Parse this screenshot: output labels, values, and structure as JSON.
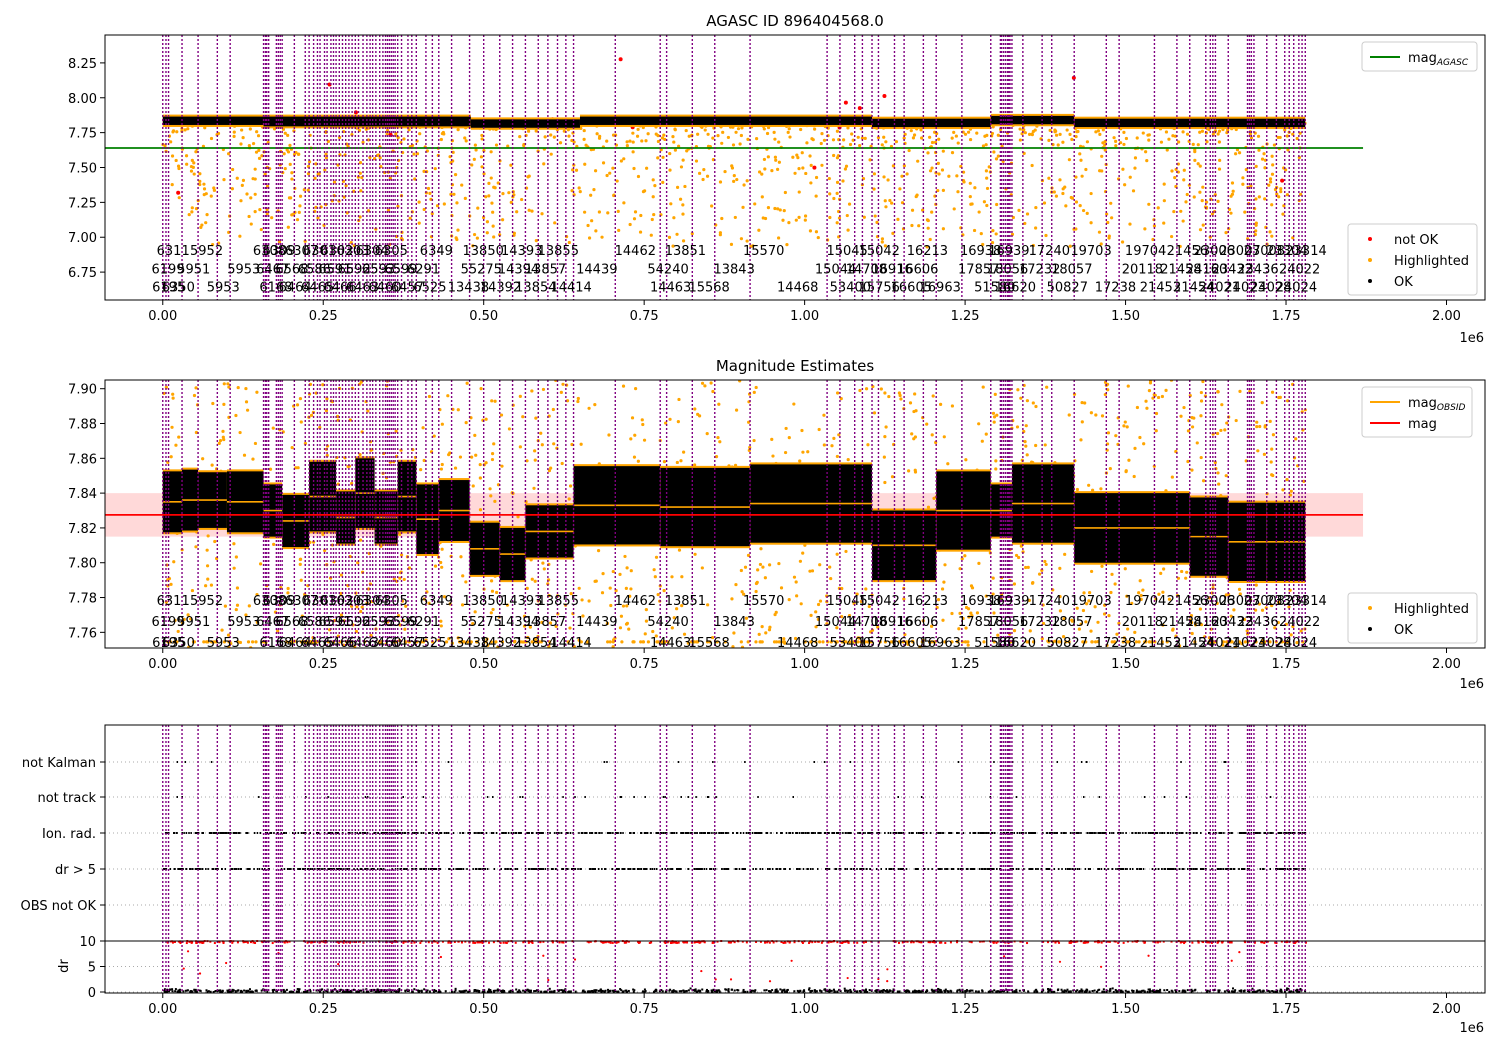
{
  "figure": {
    "width": 1500,
    "height": 1050
  },
  "colors": {
    "obs_line": "#800080",
    "ok": "#000000",
    "highlighted": "#ffa500",
    "not_ok": "#ff0000",
    "mag_agasc": "#008000",
    "mag": "#ff0000",
    "mag_band": "#ffc0c0",
    "mag_obsid": "#ffa500"
  },
  "obs_boundaries_x": [
    0,
    5000,
    9000,
    30000,
    55000,
    85000,
    105000,
    157000,
    160000,
    162000,
    165000,
    177000,
    180000,
    183000,
    186000,
    205000,
    222000,
    228000,
    235000,
    241000,
    245000,
    252000,
    256000,
    262000,
    266000,
    270000,
    275000,
    280000,
    285000,
    290000,
    295000,
    300000,
    305000,
    312000,
    318000,
    323000,
    327000,
    332000,
    338000,
    343000,
    347000,
    350000,
    353000,
    356000,
    359000,
    362000,
    366000,
    372000,
    382000,
    388000,
    395000,
    410000,
    420000,
    430000,
    450000,
    478000,
    500000,
    525000,
    545000,
    565000,
    585000,
    600000,
    615000,
    628000,
    640000,
    705000,
    775000,
    785000,
    825000,
    860000,
    915000,
    1035000,
    1055000,
    1078000,
    1090000,
    1105000,
    1115000,
    1140000,
    1155000,
    1185000,
    1205000,
    1245000,
    1290000,
    1305000,
    1307000,
    1310000,
    1313000,
    1316000,
    1318000,
    1320000,
    1323000,
    1340000,
    1370000,
    1385000,
    1420000,
    1470000,
    1490000,
    1545000,
    1580000,
    1600000,
    1625000,
    1632000,
    1636000,
    1640000,
    1660000,
    1690000,
    1693000,
    1696000,
    1700000,
    1720000,
    1735000,
    1748000,
    1755000,
    1762000,
    1770000,
    1775000,
    1780000
  ],
  "panels": [
    {
      "title": "AGASC ID 896404568.0",
      "xlim": [
        -90000,
        2060000
      ],
      "ylim": [
        6.55,
        8.45
      ],
      "yticks": [
        6.75,
        7.0,
        7.25,
        7.5,
        7.75,
        8.0,
        8.25
      ],
      "ytick_labels": [
        "6.75",
        "7.00",
        "7.25",
        "7.50",
        "7.75",
        "8.00",
        "8.25"
      ],
      "xticks": [
        0,
        250000,
        500000,
        750000,
        1000000,
        1250000,
        1500000,
        1750000,
        2000000
      ],
      "xtick_labels": [
        "0.00",
        "0.25",
        "0.50",
        "0.75",
        "1.00",
        "1.25",
        "1.50",
        "1.75",
        "2.00"
      ],
      "x_offset_label": "1e6",
      "obsid_rows_y": [
        6.9,
        6.77,
        6.64
      ],
      "hlines": [
        {
          "series": "mag_AGASC",
          "y": 7.64,
          "x0": -90000,
          "x1": 1870000
        }
      ],
      "band": null,
      "segments": [
        {
          "x0": 0,
          "x1": 157000,
          "y": 7.835,
          "h": 0.06
        },
        {
          "x0": 157000,
          "x1": 480000,
          "y": 7.83,
          "h": 0.07
        },
        {
          "x0": 480000,
          "x1": 650000,
          "y": 7.815,
          "h": 0.06
        },
        {
          "x0": 650000,
          "x1": 1105000,
          "y": 7.835,
          "h": 0.06
        },
        {
          "x0": 1105000,
          "x1": 1290000,
          "y": 7.82,
          "h": 0.06
        },
        {
          "x0": 1290000,
          "x1": 1420000,
          "y": 7.84,
          "h": 0.06
        },
        {
          "x0": 1420000,
          "x1": 1780000,
          "y": 7.82,
          "h": 0.06
        }
      ],
      "scatter_sets": [
        {
          "color_key": "highlighted",
          "n": 1400,
          "mode": "below",
          "ymin": 6.55,
          "ymax": 7.9
        },
        {
          "color_key": "not_ok",
          "n": 14,
          "mode": "sparse",
          "ymin": 7.2,
          "ymax": 8.4
        }
      ],
      "legend": [
        {
          "label": "mag",
          "sub": "AGASC",
          "type": "line",
          "color_key": "mag_agasc"
        }
      ],
      "legend2": [
        {
          "label": "not OK",
          "type": "dot",
          "color_key": "not_ok"
        },
        {
          "label": "Highlighted",
          "type": "dot",
          "color_key": "highlighted"
        },
        {
          "label": "OK",
          "type": "dot",
          "color_key": "ok"
        }
      ],
      "legend_placement": "top-right / lower-right"
    },
    {
      "title": "Magnitude Estimates",
      "xlim": [
        -90000,
        2060000
      ],
      "ylim": [
        7.751,
        7.905
      ],
      "yticks": [
        7.76,
        7.78,
        7.8,
        7.82,
        7.84,
        7.86,
        7.88,
        7.9
      ],
      "ytick_labels": [
        "7.76",
        "7.78",
        "7.80",
        "7.82",
        "7.84",
        "7.86",
        "7.88",
        "7.90"
      ],
      "xticks": [
        0,
        250000,
        500000,
        750000,
        1000000,
        1250000,
        1500000,
        1750000,
        2000000
      ],
      "xtick_labels": [
        "0.00",
        "0.25",
        "0.50",
        "0.75",
        "1.00",
        "1.25",
        "1.50",
        "1.75",
        "2.00"
      ],
      "x_offset_label": "1e6",
      "obsid_rows_y": [
        7.778,
        7.766,
        7.754
      ],
      "hlines": [
        {
          "series": "mag",
          "y": 7.8275,
          "x0": -90000,
          "x1": 1870000
        }
      ],
      "band": {
        "y0": 7.815,
        "y1": 7.84,
        "x0": -90000,
        "x1": 1870000
      },
      "segments": [
        {
          "x0": 0,
          "x1": 30000,
          "y": 7.835,
          "h": 0.035
        },
        {
          "x0": 30000,
          "x1": 55000,
          "y": 7.836,
          "h": 0.035
        },
        {
          "x0": 55000,
          "x1": 100000,
          "y": 7.836,
          "h": 0.032
        },
        {
          "x0": 100000,
          "x1": 157000,
          "y": 7.835,
          "h": 0.035
        },
        {
          "x0": 157000,
          "x1": 186000,
          "y": 7.83,
          "h": 0.03
        },
        {
          "x0": 186000,
          "x1": 228000,
          "y": 7.824,
          "h": 0.03
        },
        {
          "x0": 228000,
          "x1": 270000,
          "y": 7.838,
          "h": 0.04
        },
        {
          "x0": 270000,
          "x1": 300000,
          "y": 7.826,
          "h": 0.03
        },
        {
          "x0": 300000,
          "x1": 330000,
          "y": 7.84,
          "h": 0.04
        },
        {
          "x0": 330000,
          "x1": 366000,
          "y": 7.826,
          "h": 0.03
        },
        {
          "x0": 366000,
          "x1": 395000,
          "y": 7.838,
          "h": 0.04
        },
        {
          "x0": 395000,
          "x1": 430000,
          "y": 7.825,
          "h": 0.04
        },
        {
          "x0": 430000,
          "x1": 478000,
          "y": 7.83,
          "h": 0.035
        },
        {
          "x0": 478000,
          "x1": 525000,
          "y": 7.808,
          "h": 0.03
        },
        {
          "x0": 525000,
          "x1": 565000,
          "y": 7.805,
          "h": 0.03
        },
        {
          "x0": 565000,
          "x1": 640000,
          "y": 7.818,
          "h": 0.03
        },
        {
          "x0": 640000,
          "x1": 775000,
          "y": 7.833,
          "h": 0.045
        },
        {
          "x0": 775000,
          "x1": 915000,
          "y": 7.832,
          "h": 0.045
        },
        {
          "x0": 915000,
          "x1": 1105000,
          "y": 7.834,
          "h": 0.045
        },
        {
          "x0": 1105000,
          "x1": 1205000,
          "y": 7.81,
          "h": 0.04
        },
        {
          "x0": 1205000,
          "x1": 1290000,
          "y": 7.83,
          "h": 0.045
        },
        {
          "x0": 1290000,
          "x1": 1323000,
          "y": 7.83,
          "h": 0.03
        },
        {
          "x0": 1323000,
          "x1": 1420000,
          "y": 7.834,
          "h": 0.045
        },
        {
          "x0": 1420000,
          "x1": 1600000,
          "y": 7.82,
          "h": 0.04
        },
        {
          "x0": 1600000,
          "x1": 1660000,
          "y": 7.815,
          "h": 0.045
        },
        {
          "x0": 1660000,
          "x1": 1720000,
          "y": 7.812,
          "h": 0.045
        },
        {
          "x0": 1720000,
          "x1": 1780000,
          "y": 7.812,
          "h": 0.045
        }
      ],
      "scatter_sets": [
        {
          "color_key": "highlighted",
          "n": 1500,
          "mode": "around",
          "ymin": 7.751,
          "ymax": 7.905
        }
      ],
      "legend": [
        {
          "label": "mag",
          "sub": "OBSID",
          "type": "line",
          "color_key": "mag_obsid"
        },
        {
          "label": "mag",
          "sub": "",
          "type": "line",
          "color_key": "mag"
        }
      ],
      "legend2": [
        {
          "label": "Highlighted",
          "type": "dot",
          "color_key": "highlighted"
        },
        {
          "label": "OK",
          "type": "dot",
          "color_key": "ok"
        }
      ],
      "legend_placement": "top-right / lower-right"
    }
  ],
  "flags_panel": {
    "categories": [
      "not Kalman",
      "not track",
      "Ion. rad.",
      "dr > 5",
      "OBS not OK"
    ],
    "dr_ticks": [
      0,
      5,
      10
    ],
    "dr_tick_labels": [
      "0",
      "5",
      "10"
    ],
    "dr_label": "dr",
    "dr_max": 10,
    "xticks": [
      0,
      250000,
      500000,
      750000,
      1000000,
      1250000,
      1500000,
      1750000,
      2000000
    ],
    "xtick_labels": [
      "0.00",
      "0.25",
      "0.50",
      "0.75",
      "1.00",
      "1.25",
      "1.50",
      "1.75",
      "2.00"
    ],
    "x_offset_label": "1e6"
  },
  "obsid_labels": [
    {
      "t": "6311",
      "x": 10000,
      "r": 0
    },
    {
      "t": "5952",
      "x": 62000,
      "r": 0
    },
    {
      "t": "6308",
      "x": 160000,
      "r": 0
    },
    {
      "t": "6309",
      "x": 175000,
      "r": 0
    },
    {
      "t": "6307",
      "x": 210000,
      "r": 0
    },
    {
      "t": "6301",
      "x": 238000,
      "r": 0
    },
    {
      "t": "6302",
      "x": 265000,
      "r": 0
    },
    {
      "t": "6303",
      "x": 290000,
      "r": 0
    },
    {
      "t": "6304",
      "x": 320000,
      "r": 0
    },
    {
      "t": "6305",
      "x": 350000,
      "r": 0
    },
    {
      "t": "6349",
      "x": 420000,
      "r": 0
    },
    {
      "t": "13850",
      "x": 493000,
      "r": 0
    },
    {
      "t": "14393",
      "x": 553000,
      "r": 0
    },
    {
      "t": "13855",
      "x": 610000,
      "r": 0
    },
    {
      "t": "14462",
      "x": 730000,
      "r": 0
    },
    {
      "t": "13851",
      "x": 808000,
      "r": 0
    },
    {
      "t": "15570",
      "x": 930000,
      "r": 0
    },
    {
      "t": "15045",
      "x": 1060000,
      "r": 0
    },
    {
      "t": "15042",
      "x": 1110000,
      "r": 0
    },
    {
      "t": "16213",
      "x": 1185000,
      "r": 0
    },
    {
      "t": "16938",
      "x": 1268000,
      "r": 0
    },
    {
      "t": "16939",
      "x": 1312000,
      "r": 0
    },
    {
      "t": "17240",
      "x": 1375000,
      "r": 0
    },
    {
      "t": "19703",
      "x": 1440000,
      "r": 0
    },
    {
      "t": "19704",
      "x": 1525000,
      "r": 0
    },
    {
      "t": "21456",
      "x": 1590000,
      "r": 0
    },
    {
      "t": "23006",
      "x": 1632000,
      "r": 0
    },
    {
      "t": "23007",
      "x": 1672000,
      "r": 0
    },
    {
      "t": "23008",
      "x": 1710000,
      "r": 0
    },
    {
      "t": "23304",
      "x": 1745000,
      "r": 0
    },
    {
      "t": "23314",
      "x": 1775000,
      "r": 0
    },
    {
      "t": "6199",
      "x": 2000,
      "r": 1
    },
    {
      "t": "5951",
      "x": 42000,
      "r": 1
    },
    {
      "t": "5953",
      "x": 120000,
      "r": 1
    },
    {
      "t": "6467",
      "x": 165000,
      "r": 1
    },
    {
      "t": "6568",
      "x": 195000,
      "r": 1
    },
    {
      "t": "6586",
      "x": 230000,
      "r": 1
    },
    {
      "t": "6591",
      "x": 262000,
      "r": 1
    },
    {
      "t": "6592",
      "x": 292000,
      "r": 1
    },
    {
      "t": "6593",
      "x": 330000,
      "r": 1
    },
    {
      "t": "6599",
      "x": 365000,
      "r": 1
    },
    {
      "t": "6291",
      "x": 400000,
      "r": 1
    },
    {
      "t": "55275",
      "x": 490000,
      "r": 1
    },
    {
      "t": "14394",
      "x": 548000,
      "r": 1
    },
    {
      "t": "13857",
      "x": 590000,
      "r": 1
    },
    {
      "t": "14439",
      "x": 670000,
      "r": 1
    },
    {
      "t": "54240",
      "x": 781000,
      "r": 1
    },
    {
      "t": "13843",
      "x": 884000,
      "r": 1
    },
    {
      "t": "15044",
      "x": 1042000,
      "r": 1
    },
    {
      "t": "14708",
      "x": 1090000,
      "r": 1
    },
    {
      "t": "16916",
      "x": 1130000,
      "r": 1
    },
    {
      "t": "16606",
      "x": 1170000,
      "r": 1
    },
    {
      "t": "17857",
      "x": 1265000,
      "r": 1
    },
    {
      "t": "18056",
      "x": 1310000,
      "r": 1
    },
    {
      "t": "17232",
      "x": 1360000,
      "r": 1
    },
    {
      "t": "18057",
      "x": 1410000,
      "r": 1
    },
    {
      "t": "20118",
      "x": 1520000,
      "r": 1
    },
    {
      "t": "21458",
      "x": 1580000,
      "r": 1
    },
    {
      "t": "24160",
      "x": 1620000,
      "r": 1
    },
    {
      "t": "23432",
      "x": 1660000,
      "r": 1
    },
    {
      "t": "23436",
      "x": 1700000,
      "r": 1
    },
    {
      "t": "24022",
      "x": 1765000,
      "r": 1
    },
    {
      "t": "6195",
      "x": 3000,
      "r": 2
    },
    {
      "t": "6350",
      "x": 18000,
      "r": 2
    },
    {
      "t": "5953",
      "x": 88000,
      "r": 2
    },
    {
      "t": "6168",
      "x": 170000,
      "r": 2
    },
    {
      "t": "6464",
      "x": 200000,
      "r": 2
    },
    {
      "t": "6465",
      "x": 235000,
      "r": 2
    },
    {
      "t": "6466",
      "x": 270000,
      "r": 2
    },
    {
      "t": "6463",
      "x": 305000,
      "r": 2
    },
    {
      "t": "6460",
      "x": 340000,
      "r": 2
    },
    {
      "t": "6457",
      "x": 375000,
      "r": 2
    },
    {
      "t": "6525",
      "x": 410000,
      "r": 2
    },
    {
      "t": "13438",
      "x": 470000,
      "r": 2
    },
    {
      "t": "14392",
      "x": 520000,
      "r": 2
    },
    {
      "t": "13854",
      "x": 575000,
      "r": 2
    },
    {
      "t": "14414",
      "x": 630000,
      "r": 2
    },
    {
      "t": "14463",
      "x": 785000,
      "r": 2
    },
    {
      "t": "15568",
      "x": 845000,
      "r": 2
    },
    {
      "t": "14468",
      "x": 983000,
      "r": 2
    },
    {
      "t": "53400",
      "x": 1065000,
      "r": 2
    },
    {
      "t": "15756",
      "x": 1110000,
      "r": 2
    },
    {
      "t": "16605",
      "x": 1160000,
      "r": 2
    },
    {
      "t": "16963",
      "x": 1205000,
      "r": 2
    },
    {
      "t": "51580",
      "x": 1290000,
      "r": 2
    },
    {
      "t": "16620",
      "x": 1322000,
      "r": 2
    },
    {
      "t": "50827",
      "x": 1403000,
      "r": 2
    },
    {
      "t": "17238",
      "x": 1478000,
      "r": 2
    },
    {
      "t": "21453",
      "x": 1548000,
      "r": 2
    },
    {
      "t": "21454",
      "x": 1600000,
      "r": 2
    },
    {
      "t": "24021",
      "x": 1640000,
      "r": 2
    },
    {
      "t": "24023",
      "x": 1680000,
      "r": 2
    },
    {
      "t": "24028",
      "x": 1720000,
      "r": 2
    },
    {
      "t": "24024",
      "x": 1760000,
      "r": 2
    }
  ]
}
